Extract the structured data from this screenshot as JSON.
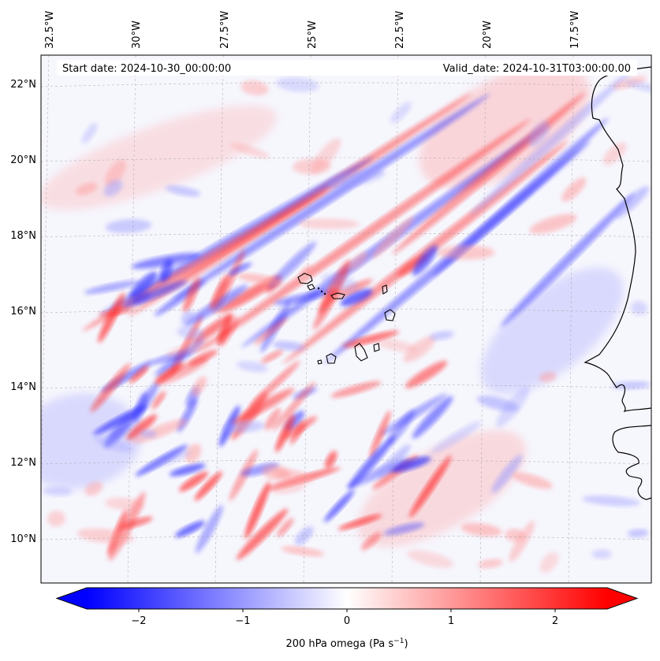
{
  "header": {
    "start_date": "Start date: 2024-10-30_00:00:00",
    "valid_date": "Valid_date: 2024-10-31T03:00:00.00"
  },
  "longitude_labels": [
    "32.5°W",
    "30°W",
    "27.5°W",
    "25°W",
    "22.5°W",
    "20°W",
    "17.5°W"
  ],
  "latitude_labels": [
    "22°N",
    "20°N",
    "18°N",
    "16°N",
    "14°N",
    "12°N",
    "10°N"
  ],
  "colorbar": {
    "title": "200 hPa omega (Pa s",
    "title_exponent": "−1",
    "title_suffix": ")",
    "tick_labels": [
      "−2",
      "−1",
      "0",
      "1",
      "2"
    ],
    "ticks": [
      -2,
      -1,
      0,
      1,
      2
    ],
    "range": [
      -2.5,
      2.5
    ],
    "colormap": "bwr",
    "color_low": "#0000ff",
    "color_mid": "#ffffff",
    "color_high": "#ff0000"
  },
  "map": {
    "field": "200 hPa omega",
    "lon_range": [
      -33,
      -16
    ],
    "lat_range": [
      9,
      23
    ],
    "coastline_color": "#000000"
  }
}
